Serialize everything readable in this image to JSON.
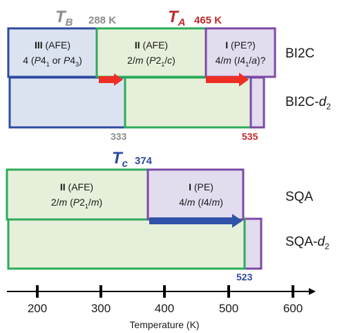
{
  "colors": {
    "gray": "#8c8c8c",
    "red": "#c0282b",
    "blue": "#2f4aa0",
    "green": "#2bab5a",
    "purple": "#7b4aa6",
    "fill_blue": "#dbe3f0",
    "fill_green": "#e6efd9",
    "fill_purple": "#e3dbee",
    "arrow_red": "#ee2e24",
    "arrow_blue": "#2f53a8",
    "text": "#1a1a1a"
  },
  "top": {
    "tb": {
      "symbol": "T",
      "sub": "B",
      "value": "288 K"
    },
    "ta": {
      "symbol": "T",
      "sub": "A",
      "value": "465 K"
    },
    "phase3": {
      "numeral": "III",
      "type": " (AFE)",
      "sg": [
        "4 (",
        "P",
        "4",
        "1",
        " or ",
        "P",
        "4",
        "3",
        ")"
      ]
    },
    "phase2": {
      "numeral": "II",
      "type": " (AFE)",
      "sg": [
        "2/",
        "m",
        " (",
        "P",
        "2",
        "1",
        "/",
        "c",
        ")"
      ]
    },
    "phase1": {
      "numeral": "I",
      "type": " (PE?)",
      "sg": [
        "4/",
        "m",
        " (",
        "I",
        "4",
        "1",
        "/",
        "a",
        ")?"
      ]
    },
    "label1": "BI2C",
    "label2": [
      "BI2C-",
      "d",
      "2"
    ],
    "mark333": "333",
    "mark535": "535"
  },
  "bottom": {
    "tc": {
      "symbol": "T",
      "sub": "c",
      "value": "374"
    },
    "phase2": {
      "numeral": "II",
      "type": " (AFE)",
      "sg": [
        "2/",
        "m",
        " (",
        "P",
        "2",
        "1",
        "/",
        "m",
        ")"
      ]
    },
    "phase1": {
      "numeral": "I",
      "type": " (PE)",
      "sg": [
        "4/",
        "m",
        " (",
        "I",
        "4/",
        "m",
        ")"
      ]
    },
    "label1": "SQA",
    "label2": [
      "SQA-",
      "d",
      "2"
    ],
    "mark523": "523"
  },
  "axis": {
    "title": "Temperature (K)",
    "ticks": [
      "200",
      "300",
      "400",
      "500",
      "600"
    ]
  }
}
